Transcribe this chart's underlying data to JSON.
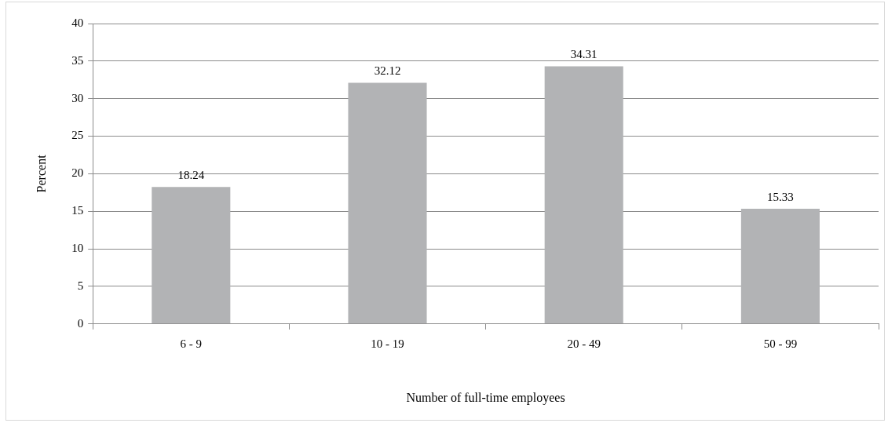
{
  "chart_data": {
    "type": "bar",
    "xlabel": "Number of full-time employees",
    "ylabel": "Percent",
    "categories": [
      "6 - 9",
      "10 - 19",
      "20 - 49",
      "50 - 99"
    ],
    "values": [
      18.24,
      32.12,
      34.31,
      15.33
    ],
    "color": "#b2b3b5",
    "ylim": [
      0,
      40
    ],
    "yticks": [
      0,
      5,
      10,
      15,
      20,
      25,
      30,
      35,
      40
    ],
    "grid": "y",
    "data_labels": true,
    "legend": false
  }
}
